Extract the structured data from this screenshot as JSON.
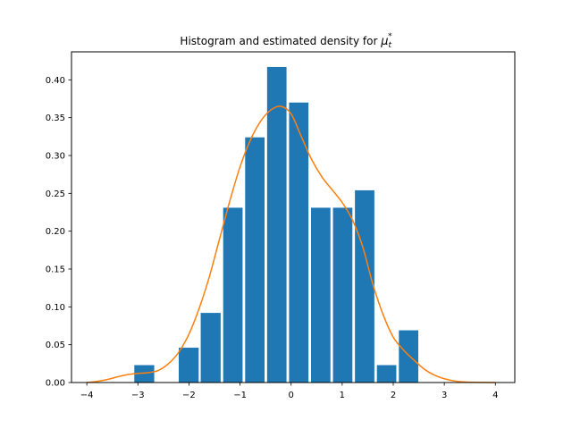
{
  "chart_data": {
    "type": "bar",
    "title": "Histogram and estimated density for ",
    "title_math_symbol": "μ",
    "title_math_sub": "t",
    "title_math_sup": "*",
    "xlim": [
      -4.3,
      4.38
    ],
    "ylim": [
      0,
      0.437
    ],
    "x_ticks": [
      -4,
      -3,
      -2,
      -1,
      0,
      1,
      2,
      3,
      4
    ],
    "x_tick_labels": [
      "−4",
      "−3",
      "−2",
      "−1",
      "0",
      "1",
      "2",
      "3",
      "4"
    ],
    "y_ticks": [
      0.0,
      0.05,
      0.1,
      0.15,
      0.2,
      0.25,
      0.3,
      0.35,
      0.4
    ],
    "y_tick_labels": [
      "0.00",
      "0.05",
      "0.10",
      "0.15",
      "0.20",
      "0.25",
      "0.30",
      "0.35",
      "0.40"
    ],
    "bar_color": "#1f77b4",
    "line_color": "#ff7f0e",
    "bars": [
      {
        "x0": -3.07,
        "x1": -2.68,
        "value": 0.023
      },
      {
        "x0": -2.2,
        "x1": -1.81,
        "value": 0.046
      },
      {
        "x0": -1.77,
        "x1": -1.38,
        "value": 0.092
      },
      {
        "x0": -1.33,
        "x1": -0.95,
        "value": 0.231
      },
      {
        "x0": -0.9,
        "x1": -0.52,
        "value": 0.324
      },
      {
        "x0": -0.47,
        "x1": -0.09,
        "value": 0.417
      },
      {
        "x0": -0.04,
        "x1": 0.34,
        "value": 0.37
      },
      {
        "x0": 0.39,
        "x1": 0.77,
        "value": 0.231
      },
      {
        "x0": 0.82,
        "x1": 1.2,
        "value": 0.231
      },
      {
        "x0": 1.25,
        "x1": 1.63,
        "value": 0.254
      },
      {
        "x0": 1.68,
        "x1": 2.06,
        "value": 0.023
      },
      {
        "x0": 2.11,
        "x1": 2.49,
        "value": 0.069
      }
    ],
    "density": {
      "x": [
        -4.0,
        -3.8,
        -3.6,
        -3.4,
        -3.2,
        -3.0,
        -2.8,
        -2.6,
        -2.4,
        -2.2,
        -2.0,
        -1.8,
        -1.6,
        -1.4,
        -1.2,
        -1.0,
        -0.8,
        -0.6,
        -0.4,
        -0.2,
        0.0,
        0.2,
        0.4,
        0.6,
        0.8,
        1.0,
        1.2,
        1.4,
        1.6,
        1.8,
        2.0,
        2.2,
        2.4,
        2.6,
        2.8,
        3.0,
        3.2,
        3.4,
        3.6,
        3.8,
        4.0
      ],
      "y": [
        0.0,
        0.0015,
        0.004,
        0.0075,
        0.0105,
        0.012,
        0.013,
        0.016,
        0.025,
        0.04,
        0.064,
        0.098,
        0.14,
        0.19,
        0.24,
        0.285,
        0.32,
        0.345,
        0.36,
        0.365,
        0.355,
        0.325,
        0.295,
        0.272,
        0.255,
        0.238,
        0.215,
        0.18,
        0.13,
        0.09,
        0.06,
        0.043,
        0.03,
        0.018,
        0.01,
        0.005,
        0.002,
        0.0008,
        0.0003,
        0.0001,
        0.0
      ]
    }
  }
}
